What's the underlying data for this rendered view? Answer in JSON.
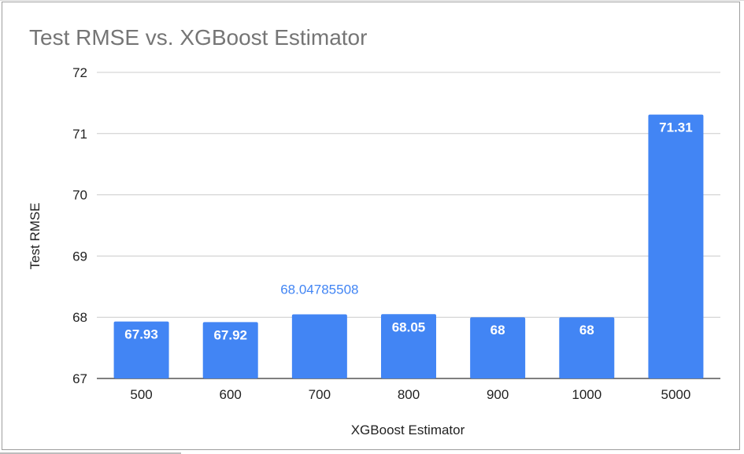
{
  "chart_data": {
    "type": "bar",
    "title": "Test RMSE vs. XGBoost Estimator",
    "xlabel": "XGBoost Estimator",
    "ylabel": "Test RMSE",
    "ylim": [
      67,
      72
    ],
    "yticks": [
      "67",
      "68",
      "69",
      "70",
      "71",
      "72"
    ],
    "categories": [
      "500",
      "600",
      "700",
      "800",
      "900",
      "1000",
      "5000"
    ],
    "values": [
      67.93,
      67.92,
      68.04785508,
      68.05,
      68,
      68,
      71.31
    ],
    "data_labels": [
      "67.93",
      "67.92",
      "68.04785508",
      "68.05",
      "68",
      "68",
      "71.31"
    ],
    "label_inside": [
      true,
      true,
      false,
      true,
      true,
      true,
      true
    ],
    "grid": true,
    "legend": "none",
    "bar_color": "#4285f4",
    "highlight_label_color": "#4285f4"
  }
}
